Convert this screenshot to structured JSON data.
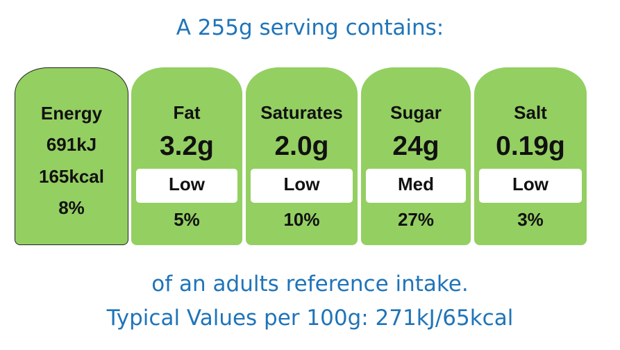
{
  "heading": "A 255g serving contains:",
  "energy": {
    "label": "Energy",
    "kj": "691kJ",
    "kcal": "165kcal",
    "percent": "8%"
  },
  "nutrients": [
    {
      "name": "Fat",
      "value": "3.2g",
      "level": "Low",
      "percent": "5%"
    },
    {
      "name": "Saturates",
      "value": "2.0g",
      "level": "Low",
      "percent": "10%"
    },
    {
      "name": "Sugar",
      "value": "24g",
      "level": "Med",
      "percent": "27%"
    },
    {
      "name": "Salt",
      "value": "0.19g",
      "level": "Low",
      "percent": "3%"
    }
  ],
  "footer": {
    "line1": "of an adults reference intake.",
    "line2": "Typical Values per 100g: 271kJ/65kcal"
  },
  "colors": {
    "panel_green": "#94cf62",
    "text_blue": "#1f74b9"
  }
}
